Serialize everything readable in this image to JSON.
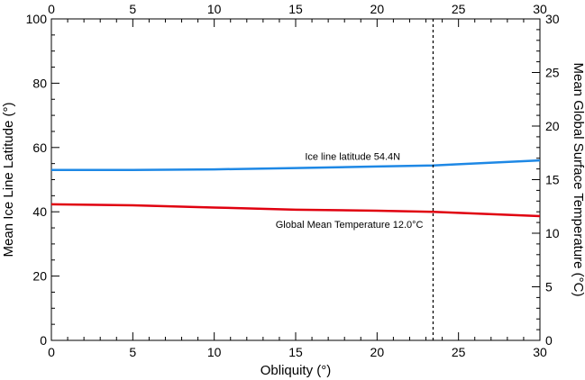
{
  "chart_data": {
    "type": "line",
    "xlabel": "Obliquity (°)",
    "ylabel_left": "Mean Ice Line Latitude (°)",
    "ylabel_right": "Mean Global Surface Temperature (°C)",
    "xlim": [
      0,
      30
    ],
    "ylim_left": [
      0,
      100
    ],
    "ylim_right": [
      0,
      30
    ],
    "xticks": [
      0,
      5,
      10,
      15,
      20,
      25,
      30
    ],
    "yticks_left": [
      0,
      20,
      40,
      60,
      80,
      100
    ],
    "yticks_right": [
      0,
      5,
      10,
      15,
      20,
      25,
      30
    ],
    "grid": false,
    "reference_line": {
      "x": 23.44,
      "style": "dashed",
      "color": "#000000"
    },
    "series": [
      {
        "axis": "left",
        "color": "#1e88e5",
        "x": [
          0,
          5,
          10,
          15,
          20,
          23.44,
          25,
          30
        ],
        "y": [
          53.0,
          53.0,
          53.2,
          53.6,
          54.1,
          54.4,
          54.8,
          56.0
        ]
      },
      {
        "axis": "right",
        "color": "#e0000f",
        "x": [
          0,
          5,
          10,
          15,
          20,
          23.44,
          25,
          30
        ],
        "y": [
          12.7,
          12.6,
          12.4,
          12.2,
          12.1,
          12.0,
          11.9,
          11.6
        ]
      }
    ],
    "annotations": [
      {
        "text": "Ice line latitude 54.4N",
        "x": 18.5,
        "y": 56.2,
        "axis": "left"
      },
      {
        "text": "Global Mean Temperature 12.0°C",
        "x": 18.3,
        "y": 10.5,
        "axis": "right"
      }
    ]
  }
}
